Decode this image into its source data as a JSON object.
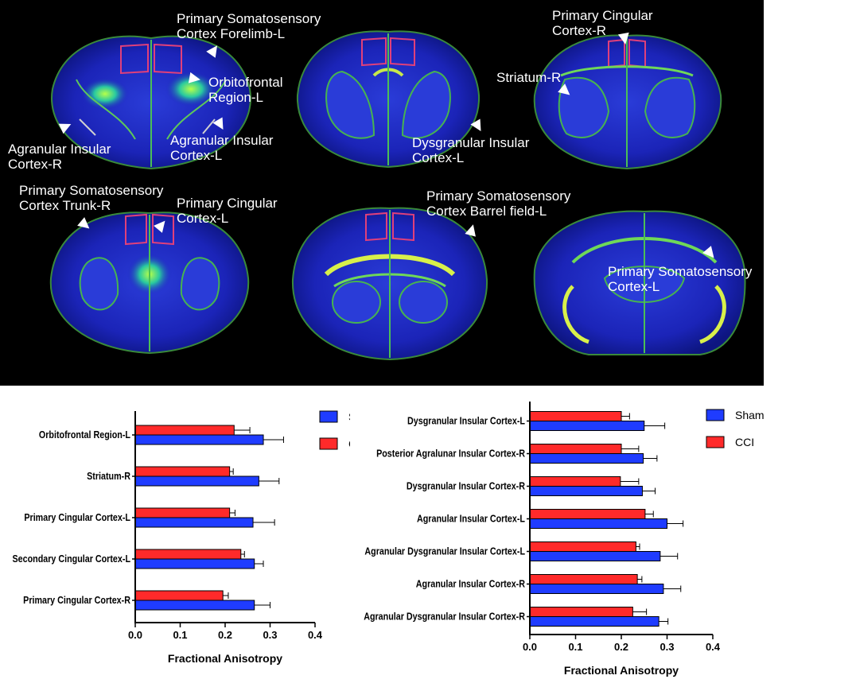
{
  "brain_annotations": [
    {
      "lines": [
        "Primary Somatosensory",
        "Cortex Forelimb-L"
      ]
    },
    {
      "lines": [
        "Orbitofrontal",
        "Region-L"
      ]
    },
    {
      "lines": [
        "Agranular Insular",
        "Cortex-R"
      ]
    },
    {
      "lines": [
        "Agranular Insular",
        "Cortex-L"
      ]
    },
    {
      "lines": [
        "Dysgranular Insular",
        "Cortex-L"
      ]
    },
    {
      "lines": [
        "Primary Cingular",
        "Cortex-R"
      ]
    },
    {
      "lines": [
        "Striatum-R"
      ]
    },
    {
      "lines": [
        "Primary Somatosensory",
        "Cortex Trunk-R"
      ]
    },
    {
      "lines": [
        "Primary Cingular",
        "Cortex-L"
      ]
    },
    {
      "lines": [
        "Primary Somatosensory",
        "Cortex Barrel field-L"
      ]
    },
    {
      "lines": [
        "Primary Somatosensory",
        "Cortex-L"
      ]
    }
  ],
  "colors": {
    "sham": "#1f3cff",
    "cci": "#ff2a2a",
    "axis": "#000000"
  },
  "chart_data": [
    {
      "type": "bar",
      "orientation": "horizontal",
      "categories": [
        "Orbitofrontal Region-L",
        "Striatum-R",
        "Primary Cingular Cortex-L",
        "Secondary Cingular Cortex-L",
        "Primary Cingular Cortex-R"
      ],
      "series": [
        {
          "name": "CCI",
          "values": [
            0.22,
            0.21,
            0.21,
            0.235,
            0.195
          ],
          "errors": [
            0.035,
            0.008,
            0.012,
            0.008,
            0.012
          ]
        },
        {
          "name": "Sham",
          "values": [
            0.285,
            0.275,
            0.262,
            0.265,
            0.265
          ],
          "errors": [
            0.045,
            0.045,
            0.048,
            0.02,
            0.035
          ]
        }
      ],
      "xlabel": "Fractional Anisotropy",
      "xlim": [
        0,
        0.4
      ],
      "ticks": [
        "0.0",
        "0.1",
        "0.2",
        "0.3",
        "0.4"
      ],
      "legend": [
        "Sham",
        "CCI"
      ]
    },
    {
      "type": "bar",
      "orientation": "horizontal",
      "categories": [
        "Dysgranular Insular Cortex-L",
        "Posterior Agralunar Insular Cortex-R",
        "Dysgranular Insular Cortex-R",
        "Agranular Insular Cortex-L",
        "Agranular Dysgranular Insular Cortex-L",
        "Agranular Insular Cortex-R",
        "Agranular Dysgranular Insular Cortex-R"
      ],
      "series": [
        {
          "name": "CCI",
          "values": [
            0.2,
            0.2,
            0.198,
            0.252,
            0.232,
            0.235,
            0.225
          ],
          "errors": [
            0.018,
            0.038,
            0.04,
            0.018,
            0.008,
            0.01,
            0.03
          ]
        },
        {
          "name": "Sham",
          "values": [
            0.25,
            0.248,
            0.246,
            0.3,
            0.285,
            0.292,
            0.282
          ],
          "errors": [
            0.045,
            0.03,
            0.028,
            0.035,
            0.038,
            0.038,
            0.02
          ]
        }
      ],
      "xlabel": "Fractional Anisotropy",
      "xlim": [
        0,
        0.4
      ],
      "ticks": [
        "0.0",
        "0.1",
        "0.2",
        "0.3",
        "0.4"
      ],
      "legend": [
        "Sham",
        "CCI"
      ]
    }
  ]
}
